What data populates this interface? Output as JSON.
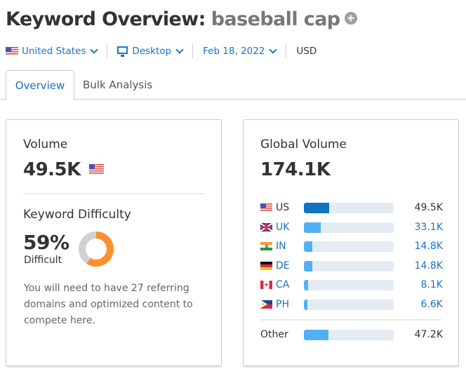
{
  "header": {
    "title_prefix": "Keyword Overview:",
    "keyword": "baseball cap",
    "add_icon": "plus-circle-icon"
  },
  "filters": {
    "country": "United States",
    "device": "Desktop",
    "date": "Feb 18, 2022",
    "currency": "USD"
  },
  "tabs": [
    {
      "label": "Overview",
      "active": true
    },
    {
      "label": "Bulk Analysis",
      "active": false
    }
  ],
  "volume": {
    "label": "Volume",
    "value": "49.5K",
    "flag": "us-flag-icon"
  },
  "keyword_difficulty": {
    "label": "Keyword Difficulty",
    "percent": "59%",
    "percent_value": 59,
    "level": "Difficult",
    "description": "You will need to have 27 referring domains and optimized content to compete here.",
    "colors": {
      "filled": "#fd8f2f",
      "empty": "#d1d1d1"
    }
  },
  "global_volume": {
    "label": "Global Volume",
    "value": "174.1K",
    "countries": [
      {
        "code": "US",
        "value": "49.5K",
        "fill_pct": 28,
        "flag": "f-us",
        "link": false
      },
      {
        "code": "UK",
        "value": "33.1K",
        "fill_pct": 19,
        "flag": "f-uk",
        "link": true
      },
      {
        "code": "IN",
        "value": "14.8K",
        "fill_pct": 9,
        "flag": "f-in",
        "link": true
      },
      {
        "code": "DE",
        "value": "14.8K",
        "fill_pct": 9,
        "flag": "f-de",
        "link": true
      },
      {
        "code": "CA",
        "value": "8.1K",
        "fill_pct": 5,
        "flag": "f-ca",
        "link": true
      },
      {
        "code": "PH",
        "value": "6.6K",
        "fill_pct": 4,
        "flag": "f-ph",
        "link": true
      }
    ],
    "other": {
      "label": "Other",
      "value": "47.2K",
      "fill_pct": 27
    }
  },
  "colors": {
    "accent": "#1a72c4",
    "bar_dark": "#1272c3",
    "bar_light": "#52b0f4",
    "bar_track": "#e4ebf2"
  }
}
